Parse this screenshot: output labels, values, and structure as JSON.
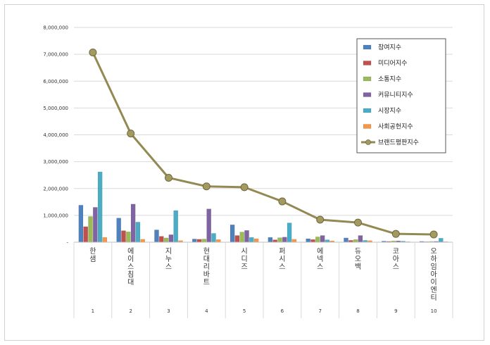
{
  "chart_data": {
    "type": "bar",
    "title": "",
    "xlabel": "",
    "ylabel": "",
    "ylim": [
      0,
      8000000
    ],
    "yticks": [
      "-",
      "1,000,000",
      "2,000,000",
      "3,000,000",
      "4,000,000",
      "5,000,000",
      "6,000,000",
      "7,000,000",
      "8,000,000"
    ],
    "grid": true,
    "legend_position": "top-right",
    "categories": [
      "한샘",
      "에이스침대",
      "지누스",
      "현대리바트",
      "시디즈",
      "퍼시스",
      "에넥스",
      "듀오백",
      "코아스",
      "오하임아이엔티"
    ],
    "ranks": [
      "1",
      "2",
      "3",
      "4",
      "5",
      "6",
      "7",
      "8",
      "9",
      "10"
    ],
    "series": [
      {
        "name": "참여지수",
        "kind": "bar",
        "color": "#4f81bd",
        "values": [
          1380000,
          900000,
          460000,
          120000,
          650000,
          180000,
          130000,
          160000,
          40000,
          30000
        ]
      },
      {
        "name": "미디어지수",
        "kind": "bar",
        "color": "#c0504d",
        "values": [
          580000,
          430000,
          220000,
          110000,
          250000,
          90000,
          100000,
          70000,
          30000,
          20000
        ]
      },
      {
        "name": "소통지수",
        "kind": "bar",
        "color": "#9bbb59",
        "values": [
          960000,
          390000,
          160000,
          120000,
          380000,
          170000,
          200000,
          100000,
          50000,
          30000
        ]
      },
      {
        "name": "커뮤니티지수",
        "kind": "bar",
        "color": "#8064a2",
        "values": [
          1300000,
          1420000,
          280000,
          1240000,
          440000,
          190000,
          250000,
          250000,
          50000,
          30000
        ]
      },
      {
        "name": "시장지수",
        "kind": "bar",
        "color": "#4bacc6",
        "values": [
          2620000,
          750000,
          1180000,
          330000,
          180000,
          720000,
          90000,
          70000,
          40000,
          150000
        ]
      },
      {
        "name": "사회공헌지수",
        "kind": "bar",
        "color": "#f79646",
        "values": [
          180000,
          110000,
          60000,
          100000,
          130000,
          110000,
          50000,
          60000,
          20000,
          20000
        ]
      },
      {
        "name": "브랜드평판지수",
        "kind": "line",
        "color": "#938953",
        "values": [
          7070000,
          4050000,
          2400000,
          2080000,
          2050000,
          1520000,
          840000,
          730000,
          310000,
          290000
        ]
      }
    ]
  }
}
